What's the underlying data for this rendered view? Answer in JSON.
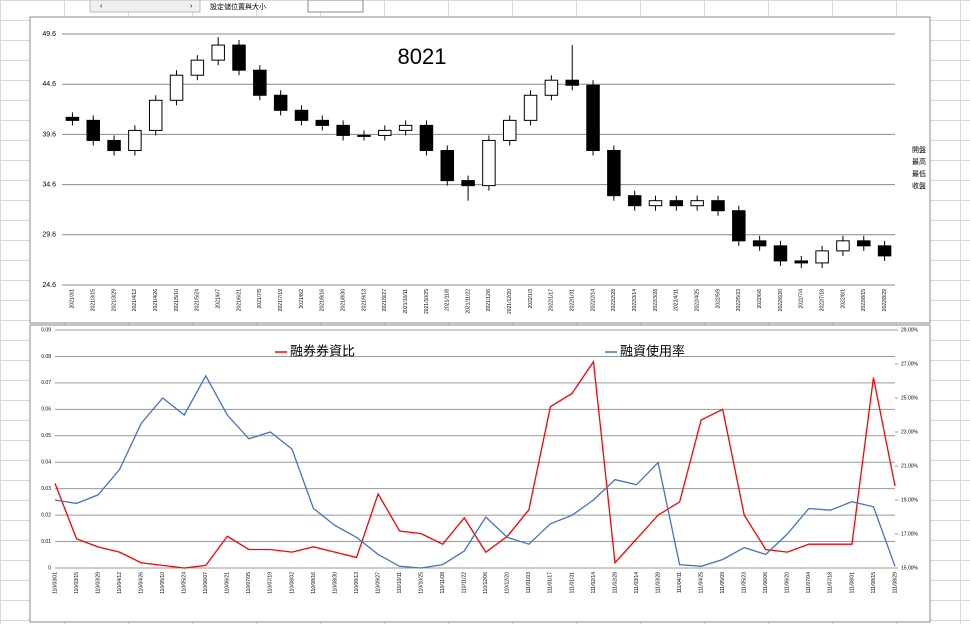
{
  "ui": {
    "toolbar_label": "設定儲位置與大小"
  },
  "chart_data": [
    {
      "type": "candlestick",
      "title": "8021",
      "categories": [
        "2021/3/1",
        "2021/3/15",
        "2021/3/29",
        "2021/4/12",
        "2021/4/26",
        "2021/5/10",
        "2021/5/24",
        "2021/6/7",
        "2021/6/21",
        "2021/7/5",
        "2021/7/19",
        "2021/8/2",
        "2021/8/16",
        "2021/8/30",
        "2021/9/13",
        "2021/9/27",
        "2021/10/11",
        "2021/10/25",
        "2021/11/8",
        "2021/11/22",
        "2021/12/6",
        "2021/12/20",
        "2022/1/3",
        "2022/1/17",
        "2022/1/31",
        "2022/2/14",
        "2022/2/28",
        "2022/3/14",
        "2022/3/28",
        "2022/4/11",
        "2022/4/25",
        "2022/5/9",
        "2022/5/23",
        "2022/6/6",
        "2022/6/20",
        "2022/7/4",
        "2022/7/18",
        "2022/8/1",
        "2022/8/15",
        "2022/8/29"
      ],
      "series": [
        {
          "name": "開盤",
          "values": [
            41.3,
            41,
            39,
            38,
            40,
            43,
            45.5,
            47,
            48.5,
            46,
            43.5,
            42,
            41,
            40.5,
            39.5,
            39.5,
            40,
            40.5,
            38,
            35,
            34.5,
            39,
            41,
            43.5,
            45,
            44.5,
            38,
            33.5,
            32.5,
            33,
            32.5,
            33,
            32,
            29,
            28.5,
            27,
            26.8,
            28,
            29,
            28.5
          ]
        },
        {
          "name": "最高",
          "values": [
            41.8,
            41.5,
            39.5,
            40.5,
            43.5,
            46,
            47.5,
            49.3,
            49,
            46.5,
            44,
            42.5,
            41.5,
            41,
            40,
            40.5,
            41,
            41,
            38.5,
            35.5,
            39.5,
            41.5,
            44,
            45.5,
            48.5,
            45,
            38.5,
            34,
            33.5,
            33.5,
            33.5,
            33.5,
            32.5,
            29.5,
            29,
            27.5,
            28.5,
            29.5,
            29.5,
            29
          ]
        },
        {
          "name": "最低",
          "values": [
            40.5,
            38.5,
            37.5,
            37.5,
            39.5,
            42.5,
            45,
            46.5,
            45.5,
            43,
            41.5,
            40.5,
            40,
            39,
            39,
            39,
            39.5,
            37.5,
            34.5,
            33,
            34,
            38.5,
            40.5,
            43,
            44,
            37.5,
            33,
            32,
            32,
            32,
            32,
            31.5,
            28.5,
            28,
            26.5,
            26.3,
            26.3,
            27.5,
            28,
            27
          ]
        },
        {
          "name": "收盤",
          "values": [
            41,
            39,
            38,
            40,
            43,
            45.5,
            47,
            48.5,
            46,
            43.5,
            42,
            41,
            40.5,
            39.5,
            39.5,
            40,
            40.5,
            38,
            35,
            34.5,
            39,
            41,
            43.5,
            45,
            44.5,
            38,
            33.5,
            32.5,
            33,
            32.5,
            33,
            32,
            29,
            28.5,
            27,
            26.8,
            28,
            29,
            28.5,
            27.5
          ]
        }
      ],
      "color": "#000000",
      "ylim": [
        24.6,
        50.8
      ],
      "yticks": [
        24.6,
        29.6,
        34.6,
        39.6,
        44.6,
        49.6
      ],
      "grid": true
    },
    {
      "type": "line",
      "categories": [
        "110/03/01",
        "110/03/15",
        "110/03/29",
        "110/04/12",
        "110/04/26",
        "110/05/10",
        "110/05/24",
        "110/06/07",
        "110/06/21",
        "110/07/05",
        "110/07/19",
        "110/08/02",
        "110/08/16",
        "110/08/30",
        "110/09/13",
        "110/09/27",
        "110/10/11",
        "110/10/25",
        "110/11/08",
        "110/11/22",
        "110/12/06",
        "110/12/20",
        "111/01/03",
        "111/01/17",
        "111/01/31",
        "111/02/14",
        "111/02/28",
        "111/03/14",
        "111/03/28",
        "111/04/11",
        "111/04/25",
        "111/05/09",
        "111/05/23",
        "111/06/06",
        "111/06/20",
        "111/07/04",
        "111/07/18",
        "111/08/01",
        "111/08/15",
        "111/08/29"
      ],
      "series": [
        {
          "name": "融券券資比",
          "color": "#ff0000",
          "values": [
            0.032,
            0.011,
            0.008,
            0.006,
            0.002,
            0.001,
            0,
            0.001,
            0.012,
            0.007,
            0.007,
            0.006,
            0.008,
            0.006,
            0.004,
            0.028,
            0.014,
            0.013,
            0.009,
            0.019,
            0.006,
            0.012,
            0.022,
            0.061,
            0.066,
            0.078,
            0.002,
            0.011,
            0.02,
            0.025,
            0.056,
            0.06,
            0.02,
            0.007,
            0.006,
            0.009,
            0.009,
            0.009,
            0.072,
            0.031
          ]
        },
        {
          "name": "融資使用率",
          "color": "#4472c4",
          "axis": "y2",
          "values": [
            19,
            18.8,
            19.3,
            20.8,
            23.5,
            25,
            24,
            26.3,
            24,
            22.6,
            23,
            22,
            18.5,
            17.5,
            16.8,
            15.8,
            15.1,
            15,
            15.2,
            16,
            18,
            16.8,
            16.4,
            17.6,
            18.1,
            19,
            20.2,
            19.9,
            21.2,
            15.2,
            15.1,
            15.5,
            16.2,
            15.8,
            17,
            18.5,
            18.4,
            18.9,
            18.6,
            15.1
          ]
        }
      ],
      "ylim": [
        0,
        0.09
      ],
      "yticks": [
        0,
        0.01,
        0.02,
        0.03,
        0.04,
        0.05,
        0.06,
        0.07,
        0.08,
        0.09
      ],
      "y2lim": [
        15,
        29
      ],
      "y2ticks": [
        {
          "value": 15,
          "label": "15.00%"
        },
        {
          "value": 17,
          "label": "17.00%"
        },
        {
          "value": 19,
          "label": "19.00%"
        },
        {
          "value": 21,
          "label": "21.00%"
        },
        {
          "value": 23,
          "label": "23.00%"
        },
        {
          "value": 25,
          "label": "25.00%"
        },
        {
          "value": 27,
          "label": "27.00%"
        },
        {
          "value": 29,
          "label": "29.00%"
        }
      ],
      "grid": true
    }
  ]
}
